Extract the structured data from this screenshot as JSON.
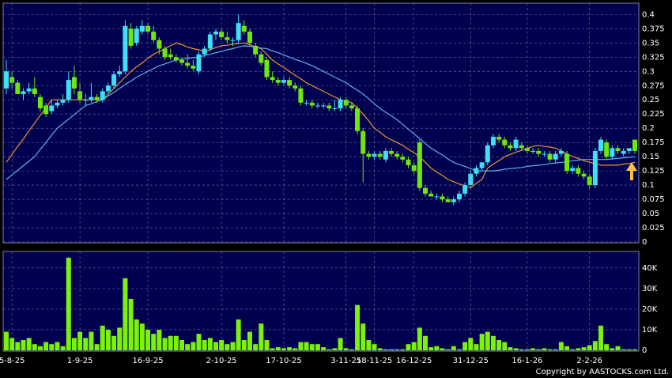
{
  "chart_data": [
    {
      "type": "candlestick",
      "open": [
        0.27,
        0.29,
        0.28,
        0.26,
        0.265,
        0.27,
        0.255,
        0.24,
        0.23,
        0.24,
        0.245,
        0.25,
        0.29,
        0.265,
        0.25,
        0.25,
        0.255,
        0.25,
        0.265,
        0.275,
        0.295,
        0.3,
        0.375,
        0.35,
        0.37,
        0.38,
        0.37,
        0.355,
        0.34,
        0.33,
        0.325,
        0.32,
        0.315,
        0.31,
        0.3,
        0.33,
        0.34,
        0.365,
        0.37,
        0.36,
        0.355,
        0.355,
        0.38,
        0.37,
        0.345,
        0.33,
        0.32,
        0.29,
        0.285,
        0.28,
        0.285,
        0.275,
        0.27,
        0.245,
        0.245,
        0.24,
        0.24,
        0.24,
        0.235,
        0.235,
        0.25,
        0.24,
        0.235,
        0.195,
        0.155,
        0.15,
        0.155,
        0.145,
        0.16,
        0.155,
        0.15,
        0.145,
        0.135,
        0.175,
        0.095,
        0.085,
        0.08,
        0.08,
        0.075,
        0.07,
        0.075,
        0.085,
        0.1,
        0.12,
        0.13,
        0.14,
        0.17,
        0.185,
        0.18,
        0.17,
        0.165,
        0.17,
        0.165,
        0.16,
        0.16,
        0.155,
        0.155,
        0.145,
        0.155,
        0.155,
        0.125,
        0.13,
        0.12,
        0.115,
        0.1,
        0.16,
        0.175,
        0.15,
        0.165,
        0.155,
        0.16,
        0.18
      ],
      "high": [
        0.32,
        0.3,
        0.285,
        0.27,
        0.28,
        0.29,
        0.26,
        0.245,
        0.25,
        0.25,
        0.26,
        0.3,
        0.31,
        0.28,
        0.26,
        0.28,
        0.26,
        0.27,
        0.28,
        0.3,
        0.31,
        0.39,
        0.385,
        0.38,
        0.39,
        0.385,
        0.38,
        0.36,
        0.345,
        0.34,
        0.33,
        0.325,
        0.33,
        0.32,
        0.335,
        0.345,
        0.37,
        0.375,
        0.375,
        0.37,
        0.36,
        0.4,
        0.39,
        0.375,
        0.35,
        0.335,
        0.325,
        0.3,
        0.29,
        0.29,
        0.29,
        0.28,
        0.275,
        0.25,
        0.25,
        0.245,
        0.245,
        0.245,
        0.25,
        0.255,
        0.255,
        0.245,
        0.24,
        0.2,
        0.16,
        0.16,
        0.16,
        0.165,
        0.165,
        0.16,
        0.155,
        0.15,
        0.14,
        0.18,
        0.1,
        0.09,
        0.085,
        0.085,
        0.08,
        0.08,
        0.09,
        0.105,
        0.125,
        0.135,
        0.14,
        0.175,
        0.19,
        0.19,
        0.185,
        0.175,
        0.185,
        0.175,
        0.17,
        0.165,
        0.165,
        0.16,
        0.16,
        0.16,
        0.165,
        0.16,
        0.135,
        0.135,
        0.125,
        0.12,
        0.165,
        0.185,
        0.18,
        0.17,
        0.17,
        0.165,
        0.165,
        0.18
      ],
      "low": [
        0.26,
        0.27,
        0.26,
        0.25,
        0.26,
        0.255,
        0.23,
        0.22,
        0.225,
        0.235,
        0.24,
        0.245,
        0.26,
        0.245,
        0.24,
        0.245,
        0.245,
        0.245,
        0.26,
        0.27,
        0.29,
        0.295,
        0.34,
        0.345,
        0.365,
        0.365,
        0.35,
        0.33,
        0.32,
        0.32,
        0.315,
        0.31,
        0.305,
        0.3,
        0.295,
        0.325,
        0.335,
        0.355,
        0.355,
        0.35,
        0.345,
        0.35,
        0.365,
        0.345,
        0.325,
        0.31,
        0.285,
        0.28,
        0.275,
        0.275,
        0.27,
        0.265,
        0.24,
        0.24,
        0.235,
        0.235,
        0.235,
        0.23,
        0.23,
        0.23,
        0.235,
        0.23,
        0.19,
        0.105,
        0.145,
        0.145,
        0.145,
        0.14,
        0.15,
        0.145,
        0.14,
        0.13,
        0.12,
        0.09,
        0.08,
        0.08,
        0.075,
        0.07,
        0.07,
        0.065,
        0.07,
        0.08,
        0.095,
        0.115,
        0.125,
        0.135,
        0.165,
        0.175,
        0.165,
        0.16,
        0.16,
        0.16,
        0.155,
        0.155,
        0.15,
        0.15,
        0.14,
        0.14,
        0.15,
        0.12,
        0.12,
        0.115,
        0.11,
        0.095,
        0.095,
        0.155,
        0.145,
        0.145,
        0.155,
        0.15,
        0.155,
        0.155
      ],
      "close": [
        0.3,
        0.28,
        0.26,
        0.265,
        0.27,
        0.26,
        0.235,
        0.225,
        0.24,
        0.245,
        0.25,
        0.285,
        0.27,
        0.25,
        0.25,
        0.255,
        0.25,
        0.265,
        0.275,
        0.295,
        0.3,
        0.38,
        0.345,
        0.375,
        0.38,
        0.37,
        0.355,
        0.34,
        0.325,
        0.325,
        0.32,
        0.315,
        0.31,
        0.305,
        0.33,
        0.34,
        0.365,
        0.37,
        0.36,
        0.355,
        0.355,
        0.385,
        0.37,
        0.35,
        0.33,
        0.315,
        0.29,
        0.285,
        0.28,
        0.285,
        0.275,
        0.27,
        0.245,
        0.245,
        0.24,
        0.24,
        0.24,
        0.235,
        0.235,
        0.25,
        0.24,
        0.235,
        0.195,
        0.155,
        0.15,
        0.155,
        0.15,
        0.16,
        0.155,
        0.15,
        0.145,
        0.135,
        0.125,
        0.095,
        0.085,
        0.08,
        0.08,
        0.075,
        0.07,
        0.075,
        0.085,
        0.1,
        0.12,
        0.13,
        0.14,
        0.17,
        0.185,
        0.18,
        0.17,
        0.165,
        0.18,
        0.165,
        0.16,
        0.16,
        0.155,
        0.155,
        0.145,
        0.155,
        0.16,
        0.125,
        0.13,
        0.12,
        0.115,
        0.1,
        0.16,
        0.18,
        0.15,
        0.165,
        0.16,
        0.16,
        0.165,
        0.16
      ],
      "up_color": "#3fe0f5",
      "down_color": "#6ee80a",
      "series": [
        {
          "color": "#f0962a",
          "values": [
            0.14,
            0.154,
            0.168,
            0.181,
            0.195,
            0.209,
            0.223,
            0.236,
            0.25,
            0.25,
            0.25,
            0.25,
            0.25,
            0.25,
            0.25,
            0.25,
            0.25,
            0.25,
            0.26,
            0.27,
            0.28,
            0.29,
            0.3,
            0.308,
            0.315,
            0.323,
            0.33,
            0.335,
            0.34,
            0.345,
            0.35,
            0.347,
            0.343,
            0.34,
            0.338,
            0.335,
            0.338,
            0.342,
            0.345,
            0.346,
            0.348,
            0.349,
            0.35,
            0.347,
            0.343,
            0.34,
            0.33,
            0.32,
            0.313,
            0.307,
            0.3,
            0.293,
            0.287,
            0.28,
            0.275,
            0.27,
            0.265,
            0.26,
            0.255,
            0.25,
            0.248,
            0.245,
            0.235,
            0.225,
            0.213,
            0.2,
            0.193,
            0.185,
            0.18,
            0.175,
            0.17,
            0.163,
            0.157,
            0.15,
            0.14,
            0.13,
            0.123,
            0.117,
            0.11,
            0.106,
            0.102,
            0.099,
            0.095,
            0.103,
            0.11,
            0.13,
            0.137,
            0.143,
            0.15,
            0.154,
            0.158,
            0.161,
            0.165,
            0.168,
            0.17,
            0.168,
            0.167,
            0.165,
            0.16,
            0.155,
            0.15,
            0.147,
            0.143,
            0.14,
            0.138,
            0.135,
            0.135,
            0.135,
            0.135,
            0.137,
            0.138,
            0.14
          ]
        },
        {
          "color": "#5fb0e8",
          "values": [
            0.11,
            0.118,
            0.126,
            0.134,
            0.142,
            0.15,
            0.163,
            0.175,
            0.188,
            0.2,
            0.208,
            0.216,
            0.224,
            0.232,
            0.24,
            0.243,
            0.247,
            0.25,
            0.257,
            0.263,
            0.27,
            0.277,
            0.283,
            0.29,
            0.295,
            0.3,
            0.305,
            0.31,
            0.313,
            0.317,
            0.32,
            0.321,
            0.323,
            0.324,
            0.325,
            0.328,
            0.33,
            0.333,
            0.335,
            0.338,
            0.34,
            0.343,
            0.345,
            0.344,
            0.343,
            0.341,
            0.34,
            0.336,
            0.333,
            0.329,
            0.325,
            0.321,
            0.318,
            0.314,
            0.31,
            0.305,
            0.3,
            0.295,
            0.29,
            0.285,
            0.28,
            0.273,
            0.267,
            0.26,
            0.252,
            0.243,
            0.235,
            0.228,
            0.222,
            0.215,
            0.207,
            0.198,
            0.19,
            0.182,
            0.173,
            0.165,
            0.159,
            0.153,
            0.146,
            0.14,
            0.136,
            0.133,
            0.129,
            0.125,
            0.125,
            0.125,
            0.125,
            0.126,
            0.128,
            0.129,
            0.13,
            0.131,
            0.133,
            0.134,
            0.135,
            0.136,
            0.138,
            0.139,
            0.14,
            0.141,
            0.143,
            0.144,
            0.145,
            0.145,
            0.145,
            0.145,
            0.145,
            0.146,
            0.147,
            0.148,
            0.149,
            0.15
          ]
        }
      ],
      "ylim": [
        0,
        0.42
      ],
      "yticks": [
        0,
        0.025,
        0.05,
        0.075,
        0.1,
        0.125,
        0.15,
        0.175,
        0.2,
        0.225,
        0.25,
        0.275,
        0.3,
        0.325,
        0.35,
        0.375,
        0.4
      ],
      "grid": true
    },
    {
      "type": "bar",
      "categories": [
        null,
        "5-8-25",
        null,
        null,
        null,
        null,
        null,
        null,
        null,
        null,
        null,
        null,
        null,
        "1-9-25",
        null,
        null,
        null,
        null,
        null,
        null,
        null,
        null,
        null,
        null,
        null,
        "16-9-25",
        null,
        null,
        null,
        null,
        null,
        null,
        null,
        null,
        null,
        null,
        null,
        null,
        "2-10-25",
        null,
        null,
        null,
        null,
        null,
        null,
        null,
        null,
        null,
        null,
        "17-10-25",
        null,
        null,
        null,
        null,
        null,
        null,
        null,
        null,
        null,
        null,
        "3-11-25",
        null,
        null,
        null,
        null,
        "18-11-25",
        null,
        null,
        null,
        null,
        null,
        null,
        "16-12-25",
        null,
        null,
        null,
        null,
        null,
        null,
        null,
        null,
        null,
        "31-12-25",
        null,
        null,
        null,
        null,
        null,
        null,
        null,
        null,
        null,
        "16-1-26",
        null,
        null,
        null,
        null,
        null,
        null,
        null,
        null,
        null,
        null,
        "2-2-26",
        null,
        null,
        null,
        null,
        null,
        null,
        null,
        null
      ],
      "values": [
        9000,
        6000,
        4000,
        5000,
        6000,
        3000,
        2000,
        4000,
        3000,
        4000,
        2000,
        45000,
        6000,
        9000,
        6000,
        9000,
        3000,
        12000,
        10000,
        7000,
        11000,
        35000,
        25000,
        15000,
        13000,
        10000,
        8000,
        10000,
        6000,
        7000,
        7000,
        5000,
        3000,
        4000,
        8000,
        5000,
        6000,
        4000,
        5000,
        3000,
        4000,
        15000,
        5000,
        9000,
        3000,
        13000,
        5000,
        1000,
        1500,
        1000,
        1500,
        1000,
        4000,
        4000,
        3000,
        3000,
        1500,
        500,
        1000,
        6000,
        1000,
        500,
        22000,
        13000,
        5000,
        3000,
        1000,
        500,
        500,
        500,
        500,
        3000,
        4000,
        11000,
        7000,
        1500,
        2000,
        1000,
        500,
        2000,
        500,
        4000,
        6000,
        3000,
        8000,
        9000,
        7000,
        5000,
        4000,
        1500,
        1000,
        500,
        500,
        1000,
        500,
        1000,
        500,
        500,
        4000,
        2000,
        500,
        1000,
        1500,
        2500,
        4500,
        12000,
        3000,
        1000,
        2000,
        500,
        500,
        500
      ],
      "color": "#7af20a",
      "ylim": [
        0,
        48000
      ],
      "yticks": [
        0,
        {
          "value": 10000,
          "label": "10K"
        },
        {
          "value": 20000,
          "label": "20K"
        },
        {
          "value": 30000,
          "label": "30K"
        },
        {
          "value": 40000,
          "label": "40K"
        }
      ],
      "grid": true
    }
  ],
  "copyright": "Copyright by AASTOCKS.com Ltd."
}
